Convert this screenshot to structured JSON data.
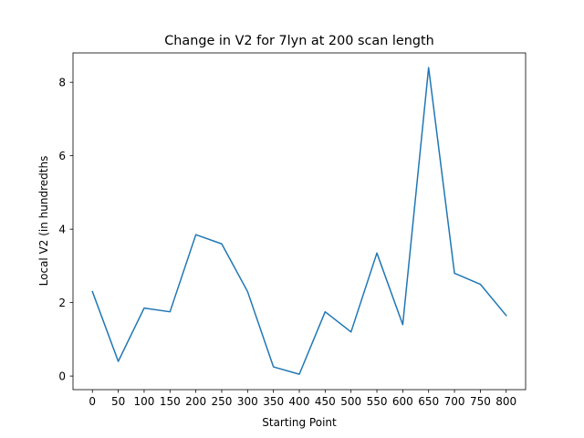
{
  "chart_data": {
    "type": "line",
    "title": "Change in V2 for 7lyn at 200 scan length",
    "xlabel": "Starting Point",
    "ylabel": "Local V2 (in hundredths",
    "xlim": [
      -37.5,
      837.5
    ],
    "ylim": [
      -0.37,
      8.8
    ],
    "x_ticks": [
      0,
      50,
      100,
      150,
      200,
      250,
      300,
      350,
      400,
      450,
      500,
      550,
      600,
      650,
      700,
      750,
      800
    ],
    "y_ticks": [
      0,
      2,
      4,
      6,
      8
    ],
    "grid": false,
    "series": [
      {
        "color": "#1f77b4",
        "x": [
          0,
          50,
          100,
          150,
          200,
          250,
          300,
          350,
          400,
          450,
          500,
          550,
          600,
          650,
          700,
          750,
          800
        ],
        "y": [
          2.3,
          0.4,
          1.85,
          1.75,
          3.85,
          3.6,
          2.3,
          0.25,
          0.05,
          1.75,
          1.2,
          3.35,
          1.4,
          8.4,
          2.8,
          2.5,
          1.65
        ]
      }
    ]
  }
}
